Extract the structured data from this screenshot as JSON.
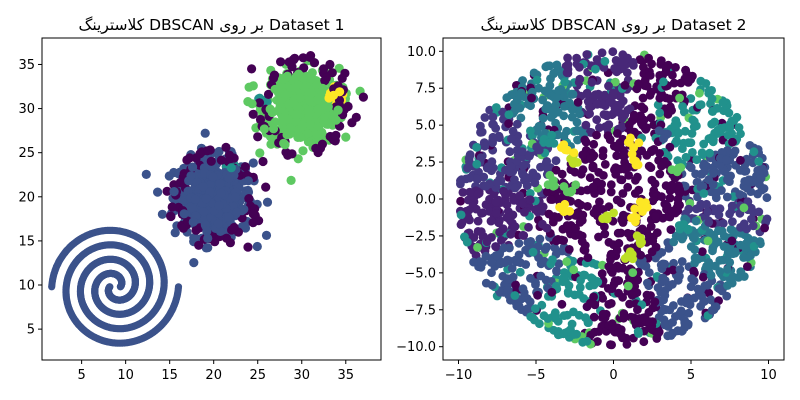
{
  "chart_data": [
    {
      "type": "scatter",
      "title": "کلاسترینگ DBSCAN بر روی Dataset 1",
      "xlim": [
        0.5,
        39.0
      ],
      "ylim": [
        1.5,
        38.0
      ],
      "xticks": [
        5,
        10,
        15,
        20,
        25,
        30,
        35
      ],
      "yticks": [
        5,
        10,
        15,
        20,
        25,
        30,
        35
      ],
      "grid": false,
      "colormap": [
        "#440154",
        "#3b528b",
        "#21918c",
        "#5ec962",
        "#fde725"
      ],
      "clusters": [
        {
          "kind": "spiral",
          "center": [
            8.8,
            9.8
          ],
          "turns": 2.0,
          "max_radius": 6.6,
          "color": "#3b528b"
        },
        {
          "kind": "spiral",
          "center": [
            8.8,
            9.8
          ],
          "turns": 2.0,
          "max_radius": 6.6,
          "color": "#3b528b",
          "phase": 180
        },
        {
          "kind": "blob",
          "center": [
            20.0,
            20.0
          ],
          "sd": 2.2,
          "count": 420,
          "color": "#3b528b"
        },
        {
          "kind": "blob",
          "center": [
            30.0,
            30.3
          ],
          "sd": 2.1,
          "count": 380,
          "color": "#5ec962"
        },
        {
          "kind": "blob",
          "center": [
            33.8,
            31.6
          ],
          "sd": 0.5,
          "count": 14,
          "color": "#fde725"
        },
        {
          "kind": "blob",
          "center": [
            22.0,
            23.3
          ],
          "sd": 0.35,
          "count": 8,
          "color": "#21918c"
        },
        {
          "kind": "blob",
          "center": [
            25.7,
            31.0
          ],
          "sd": 0.3,
          "count": 6,
          "color": "#21918c"
        }
      ],
      "noise_color": "#440154",
      "noise": [
        [
          16.0,
          18.8
        ],
        [
          16.8,
          21.0
        ],
        [
          17.4,
          23.1
        ],
        [
          18.3,
          14.5
        ],
        [
          19.6,
          25.3
        ],
        [
          21.4,
          25.6
        ],
        [
          23.9,
          14.3
        ],
        [
          24.5,
          22.2
        ],
        [
          25.9,
          21.1
        ],
        [
          25.1,
          17.3
        ],
        [
          16.9,
          16.8
        ],
        [
          18.0,
          24.4
        ],
        [
          22.8,
          16.0
        ],
        [
          24.0,
          19.8
        ],
        [
          26.0,
          29.8
        ],
        [
          25.5,
          28.0
        ],
        [
          26.9,
          33.8
        ],
        [
          24.3,
          34.5
        ],
        [
          31.0,
          36.0
        ],
        [
          29.2,
          35.7
        ],
        [
          35.7,
          28.4
        ],
        [
          37.0,
          31.3
        ],
        [
          36.2,
          29.0
        ],
        [
          33.8,
          26.4
        ],
        [
          31.6,
          25.5
        ],
        [
          28.4,
          24.7
        ],
        [
          27.5,
          26.1
        ],
        [
          25.0,
          26.8
        ],
        [
          34.9,
          34.0
        ],
        [
          33.2,
          35.0
        ],
        [
          27.6,
          35.3
        ],
        [
          23.6,
          23.4
        ],
        [
          15.7,
          20.2
        ],
        [
          21.9,
          14.8
        ],
        [
          19.3,
          15.6
        ],
        [
          25.6,
          24.0
        ]
      ]
    },
    {
      "type": "scatter",
      "title": "کلاسترینگ DBSCAN بر روی Dataset 2",
      "xlim": [
        -11.0,
        11.0
      ],
      "ylim": [
        -10.9,
        10.9
      ],
      "xticks": [
        -10,
        -5,
        0,
        5,
        10
      ],
      "yticks": [
        -10.0,
        -7.5,
        -5.0,
        -2.5,
        0.0,
        2.5,
        5.0,
        7.5,
        10.0
      ],
      "ytick_labels": [
        "−10.0",
        "−7.5",
        "−5.0",
        "−2.5",
        "0.0",
        "2.5",
        "5.0",
        "7.5",
        "10.0"
      ],
      "xtick_labels": [
        "−10",
        "−5",
        "0",
        "5",
        "10"
      ],
      "grid": false,
      "colormap": [
        "#440154",
        "#3b528b",
        "#21918c",
        "#5ec962",
        "#fde725"
      ],
      "ring": {
        "inner_radius": 4.5,
        "outer_radius": 10.0,
        "count": 1500
      },
      "inner_disk": {
        "radius": 4.5,
        "count": 260
      },
      "ring_sectors": [
        {
          "from": 0,
          "to": 25,
          "color": "#3b528b"
        },
        {
          "from": 25,
          "to": 55,
          "color": "#21918c"
        },
        {
          "from": 55,
          "to": 80,
          "color": "#440154"
        },
        {
          "from": 80,
          "to": 110,
          "color": "#482878"
        },
        {
          "from": 110,
          "to": 140,
          "color": "#2a788e"
        },
        {
          "from": 140,
          "to": 175,
          "color": "#443983"
        },
        {
          "from": 175,
          "to": 205,
          "color": "#482173"
        },
        {
          "from": 205,
          "to": 235,
          "color": "#3b528b"
        },
        {
          "from": 235,
          "to": 260,
          "color": "#21918c"
        },
        {
          "from": 260,
          "to": 290,
          "color": "#440154"
        },
        {
          "from": 290,
          "to": 320,
          "color": "#3b528b"
        },
        {
          "from": 320,
          "to": 345,
          "color": "#2a788e"
        },
        {
          "from": 345,
          "to": 360,
          "color": "#443983"
        }
      ],
      "inner_color": "#440154",
      "inner_accents": [
        {
          "center": [
            -2.6,
            2.6
          ],
          "color": "#bddf26"
        },
        {
          "center": [
            1.2,
            3.8
          ],
          "color": "#fde725"
        },
        {
          "center": [
            1.5,
            2.6
          ],
          "color": "#fde725"
        },
        {
          "center": [
            -3.2,
            3.2
          ],
          "color": "#fde725"
        },
        {
          "center": [
            -3.0,
            -0.5
          ],
          "color": "#fde725"
        },
        {
          "center": [
            1.5,
            -1.2
          ],
          "color": "#fde725"
        },
        {
          "center": [
            2.0,
            -0.5
          ],
          "color": "#fde725"
        },
        {
          "center": [
            -0.3,
            -0.9
          ],
          "color": "#bddf26"
        },
        {
          "center": [
            1.6,
            -2.8
          ],
          "color": "#bddf26"
        },
        {
          "center": [
            -4.0,
            1.2
          ],
          "color": "#5ec962"
        },
        {
          "center": [
            -2.7,
            0.5
          ],
          "color": "#5ec962"
        },
        {
          "center": [
            1.2,
            -3.9
          ],
          "color": "#bddf26"
        },
        {
          "center": [
            4.0,
            2.0
          ],
          "color": "#5ec962"
        },
        {
          "center": [
            3.3,
            4.3
          ],
          "color": "#3b528b"
        },
        {
          "center": [
            -4.2,
            4.0
          ],
          "color": "#21918c"
        },
        {
          "center": [
            4.4,
            -1.9
          ],
          "color": "#21918c"
        }
      ]
    }
  ]
}
